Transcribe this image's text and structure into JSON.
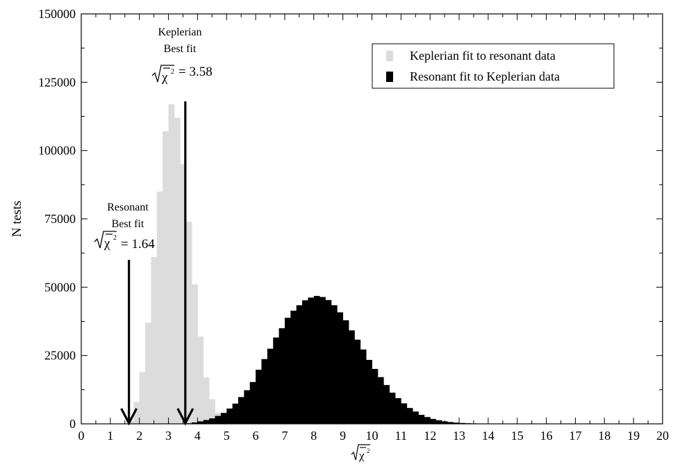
{
  "chart_data": {
    "type": "bar",
    "xlabel": "√χ̄²",
    "ylabel": "N tests",
    "xlim": [
      0,
      20
    ],
    "ylim": [
      0,
      150000
    ],
    "x_ticks": [
      "0",
      "1",
      "2",
      "3",
      "4",
      "5",
      "6",
      "7",
      "8",
      "9",
      "10",
      "11",
      "12",
      "13",
      "14",
      "15",
      "16",
      "17",
      "18",
      "19",
      "20"
    ],
    "y_ticks": [
      "0",
      "25000",
      "50000",
      "75000",
      "100000",
      "125000",
      "150000"
    ],
    "y_tick_values": [
      0,
      25000,
      50000,
      75000,
      100000,
      125000,
      150000
    ],
    "grid": false,
    "legend_position": "top-right",
    "bin_width": 0.2,
    "series": [
      {
        "name": "Keplerian fit to resonant data",
        "color": "#dcdcdc",
        "x_start": 1.6,
        "values": [
          1000,
          8000,
          19000,
          37000,
          61000,
          85000,
          107000,
          117000,
          112000,
          95000,
          74000,
          51000,
          32000,
          17000,
          9000,
          4000,
          1500,
          500,
          100
        ]
      },
      {
        "name": "Resonant fit to Keplerian data",
        "color": "#000000",
        "x_start": 3.6,
        "values": [
          200,
          500,
          900,
          1400,
          2000,
          2900,
          4000,
          5600,
          7400,
          9800,
          12300,
          15300,
          19800,
          23700,
          27500,
          31600,
          35000,
          38800,
          41400,
          43400,
          45200,
          46200,
          46800,
          46400,
          45300,
          43400,
          40800,
          37900,
          34200,
          30800,
          27200,
          23400,
          20100,
          17100,
          14200,
          11400,
          9400,
          7500,
          5800,
          4500,
          3300,
          2500,
          1800,
          1300,
          900,
          650,
          450,
          320,
          230,
          160,
          110,
          80,
          55,
          40,
          30,
          20
        ]
      }
    ],
    "annotations": [
      {
        "id": "resonant",
        "lines": [
          "Resonant",
          "Best fit"
        ],
        "value_text": "= 1.64",
        "arrow_x": 1.64,
        "arrow_top": 60000
      },
      {
        "id": "keplerian",
        "lines": [
          "Keplerian",
          "Best fit"
        ],
        "value_text": "= 3.58",
        "arrow_x": 3.58,
        "arrow_top": 118000
      }
    ]
  }
}
